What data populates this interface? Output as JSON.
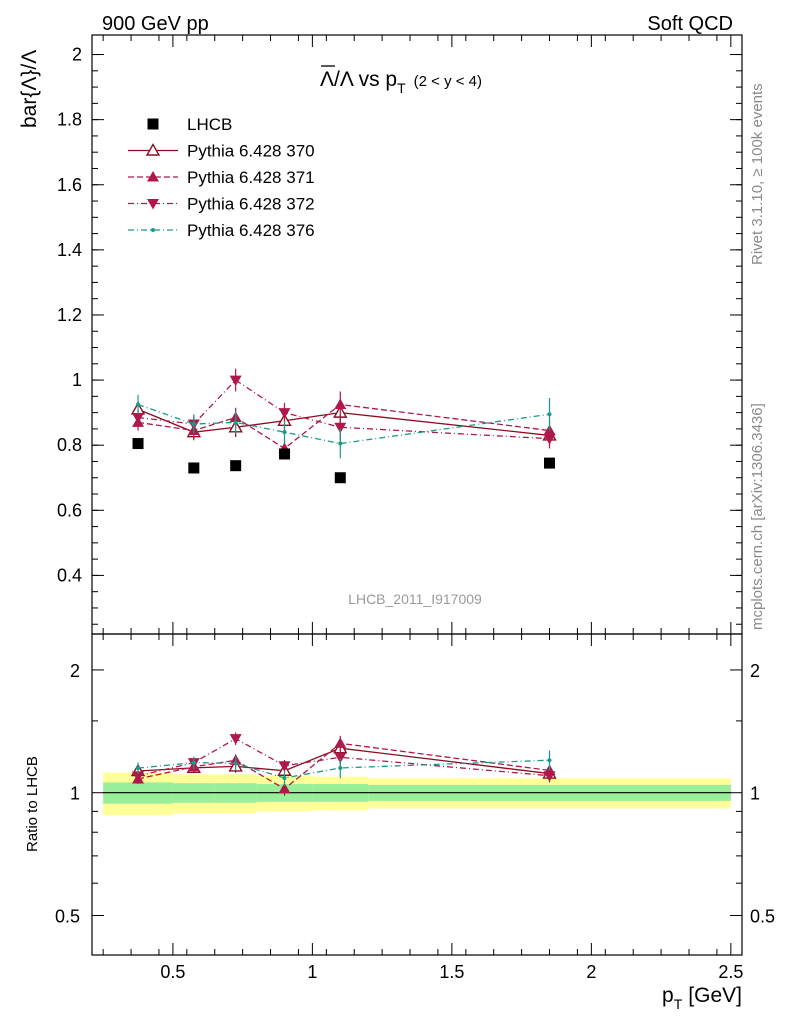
{
  "header": {
    "left": "900 GeV pp",
    "right": "Soft QCD"
  },
  "side_text": {
    "rivet": "Rivet 3.1.10, ≥ 100k events",
    "mcplots": "mcplots.cern.ch [arXiv:1306.3436]"
  },
  "chart_data": {
    "type": "line",
    "title_main": "Λ/Λ vs p",
    "title_sub": "T",
    "title_range": "(2 < y < 4)",
    "ylabel": "bar{Λ}/Λ",
    "ratio_ylabel": "Ratio to LHCB",
    "xlabel_main": "p",
    "xlabel_sub": "T",
    "xlabel_unit": "[GeV]",
    "watermark": "LHCB_2011_I917009",
    "xlim": [
      0.21,
      2.54
    ],
    "ylim": [
      0.22,
      2.06
    ],
    "ratio_ylim": [
      0.4,
      2.45
    ],
    "x_ticks": [
      "0.5",
      "1",
      "1.5",
      "2",
      "2.5"
    ],
    "y_ticks": [
      "0.4",
      "0.6",
      "0.8",
      "1",
      "1.2",
      "1.4",
      "1.6",
      "1.8",
      "2"
    ],
    "ratio_y_ticks": [
      "0.5",
      "1",
      "2"
    ],
    "x": [
      0.375,
      0.575,
      0.725,
      0.9,
      1.1,
      1.85
    ],
    "reference": {
      "name": "LHCB",
      "color": "#000000",
      "values": [
        0.805,
        0.73,
        0.737,
        0.773,
        0.7,
        0.745
      ],
      "band_inner": [
        [
          0.25,
          0.5,
          0.06
        ],
        [
          0.5,
          0.65,
          0.055
        ],
        [
          0.65,
          0.8,
          0.055
        ],
        [
          0.8,
          1.0,
          0.05
        ],
        [
          1.0,
          1.2,
          0.05
        ],
        [
          1.2,
          2.5,
          0.045
        ]
      ],
      "band_outer": [
        [
          0.25,
          0.5,
          0.12
        ],
        [
          0.5,
          0.65,
          0.11
        ],
        [
          0.65,
          0.8,
          0.11
        ],
        [
          0.8,
          1.0,
          0.1
        ],
        [
          1.0,
          1.2,
          0.095
        ],
        [
          1.2,
          2.5,
          0.085
        ]
      ]
    },
    "series": [
      {
        "name": "Pythia 6.428 370",
        "color": "#8b0d1f",
        "marker": "triangle-up-open",
        "dash": "",
        "values": [
          0.91,
          0.84,
          0.855,
          0.875,
          0.9,
          0.83
        ],
        "errors": [
          0.025,
          0.025,
          0.03,
          0.03,
          0.04,
          0.03
        ]
      },
      {
        "name": "Pythia 6.428 371",
        "color": "#b0184a",
        "marker": "triangle-up-filled",
        "dash": "6,3",
        "values": [
          0.87,
          0.845,
          0.885,
          0.79,
          0.925,
          0.845
        ],
        "errors": [
          0.025,
          0.025,
          0.03,
          0.03,
          0.04,
          0.03
        ]
      },
      {
        "name": "Pythia 6.428 372",
        "color": "#b0184a",
        "marker": "triangle-down-filled",
        "dash": "6,3,1,3",
        "values": [
          0.885,
          0.865,
          1.0,
          0.9,
          0.855,
          0.82
        ],
        "errors": [
          0.025,
          0.025,
          0.035,
          0.03,
          0.04,
          0.03
        ]
      },
      {
        "name": "Pythia 6.428 376",
        "color": "#1a9a8a",
        "marker": "dot",
        "dash": "6,3,1,3",
        "values": [
          0.925,
          0.865,
          0.87,
          0.84,
          0.805,
          0.895
        ],
        "errors": [
          0.03,
          0.03,
          0.035,
          0.035,
          0.045,
          0.05
        ]
      }
    ]
  }
}
